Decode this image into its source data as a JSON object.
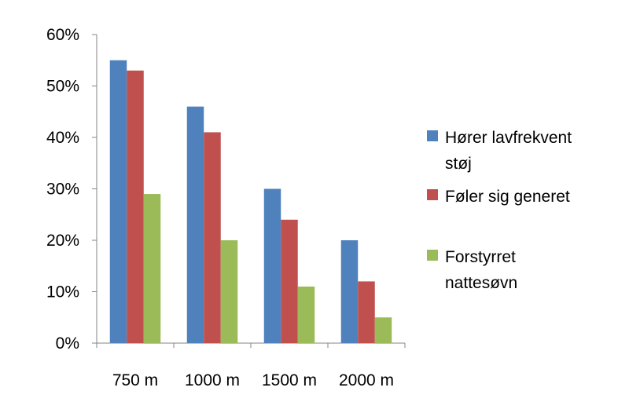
{
  "chart_data": {
    "type": "bar",
    "categories": [
      "750 m",
      "1000 m",
      "1500 m",
      "2000 m"
    ],
    "series": [
      {
        "name": "Hører lavfrekvent støj",
        "name_lines": [
          "Hører lavfrekvent",
          "støj"
        ],
        "color": "#4f81bd",
        "values": [
          55,
          46,
          30,
          20
        ]
      },
      {
        "name": "Føler sig generet",
        "name_lines": [
          "Føler sig generet"
        ],
        "color": "#c0504d",
        "values": [
          53,
          41,
          24,
          12
        ]
      },
      {
        "name": "Forstyrret nattesøvn",
        "name_lines": [
          "Forstyrret",
          "nattesøvn"
        ],
        "color": "#9bbb59",
        "values": [
          29,
          20,
          11,
          5
        ]
      }
    ],
    "y_ticks": [
      "0%",
      "10%",
      "20%",
      "30%",
      "40%",
      "50%",
      "60%"
    ],
    "ylim": [
      0,
      60
    ],
    "grid": false,
    "legend_position": "right",
    "title": "",
    "xlabel": "",
    "ylabel": ""
  }
}
